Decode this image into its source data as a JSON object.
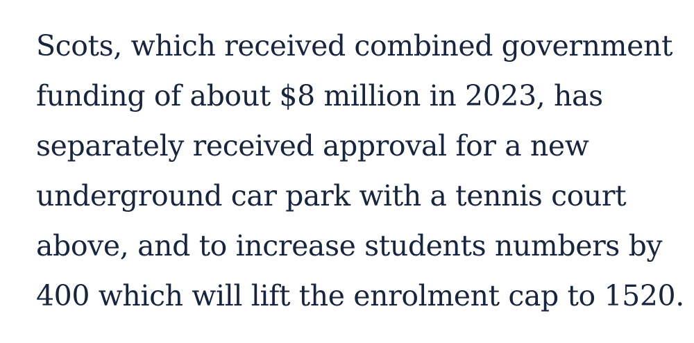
{
  "article": {
    "paragraph_lines": [
      "Scots, which received combined government",
      "funding of about $8 million in 2023, has",
      "separately received approval for a new",
      "underground car park with a tennis court",
      "above, and to increase students numbers by",
      "400 which will lift the enrolment cap to 1520."
    ]
  },
  "colors": {
    "text": "#17253f",
    "background": "#ffffff"
  }
}
